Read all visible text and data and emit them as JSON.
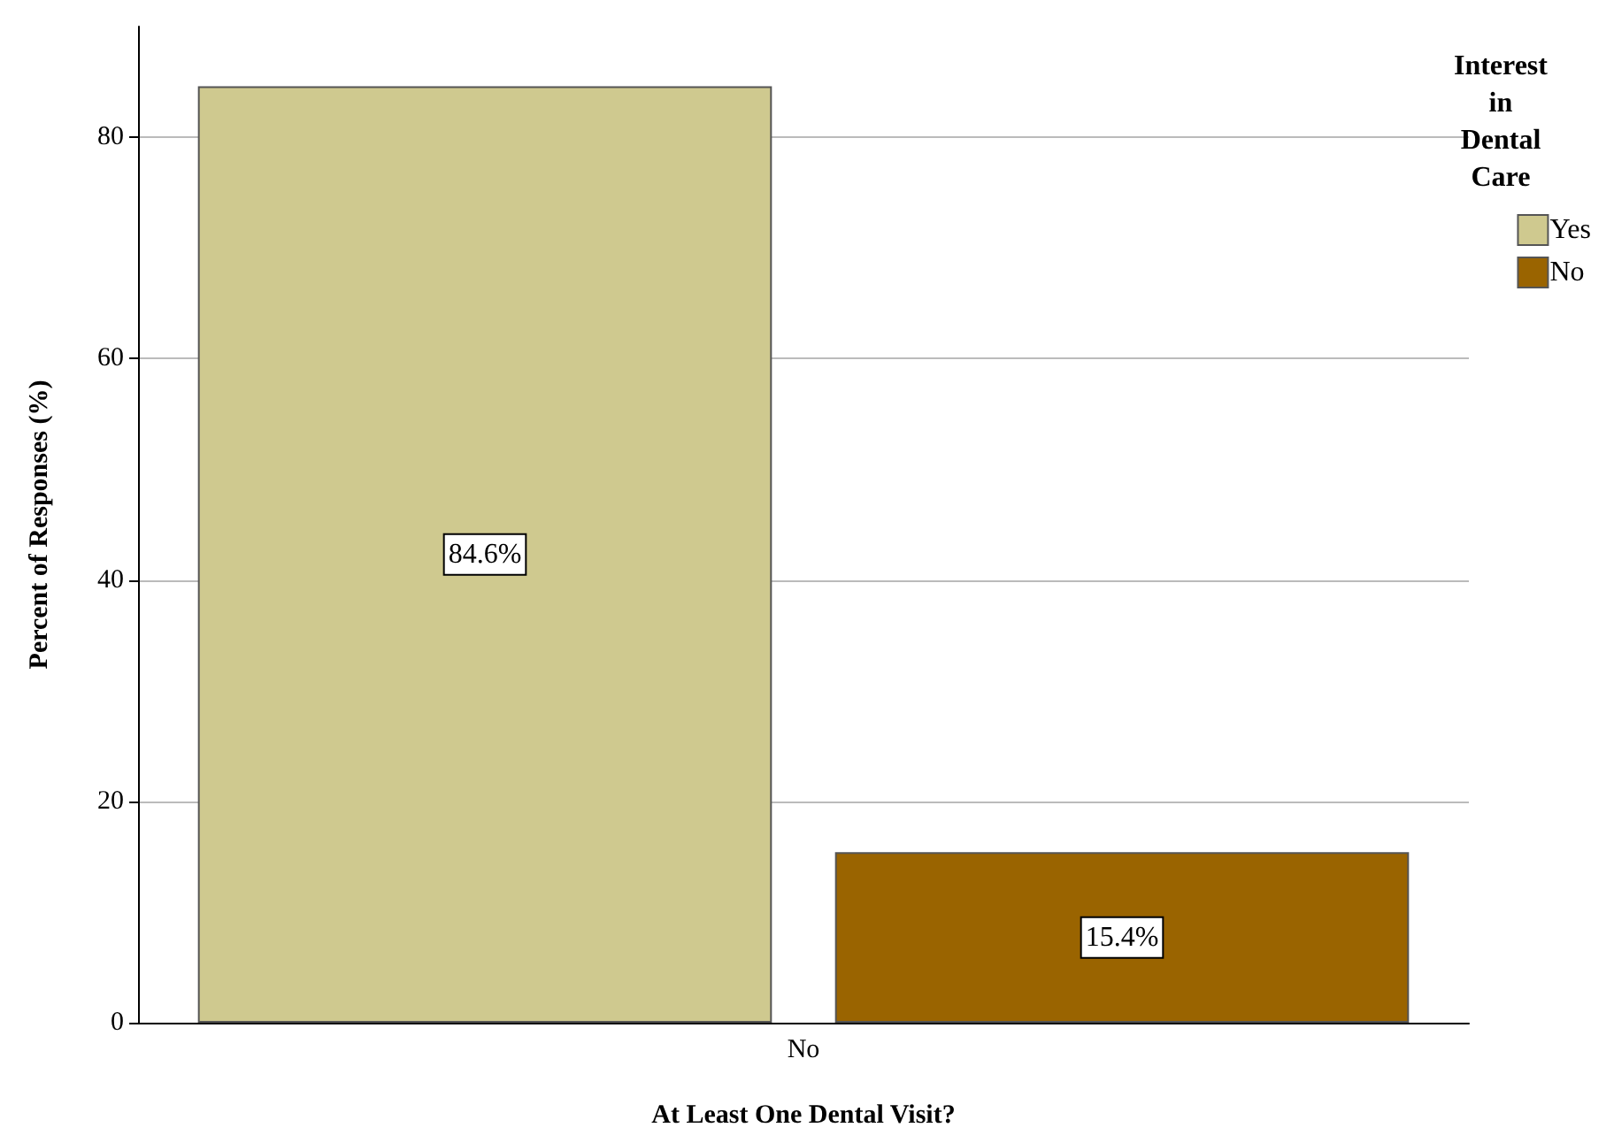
{
  "chart_data": {
    "type": "bar",
    "xlabel": "At Least One Dental Visit?",
    "ylabel": "Percent of Responses (%)",
    "legend_title": "Interest\nin\nDental\nCare",
    "categories": [
      "No"
    ],
    "series": [
      {
        "name": "Yes",
        "color": "#cfc98f",
        "values": [
          84.6
        ],
        "value_labels": [
          "84.6%"
        ]
      },
      {
        "name": "No",
        "color": "#9a6400",
        "values": [
          15.4
        ],
        "value_labels": [
          "15.4%"
        ]
      }
    ],
    "ylim": [
      0,
      90
    ],
    "yticks": [
      0,
      20,
      40,
      60,
      80
    ],
    "grid": "y",
    "legend": "top right"
  }
}
